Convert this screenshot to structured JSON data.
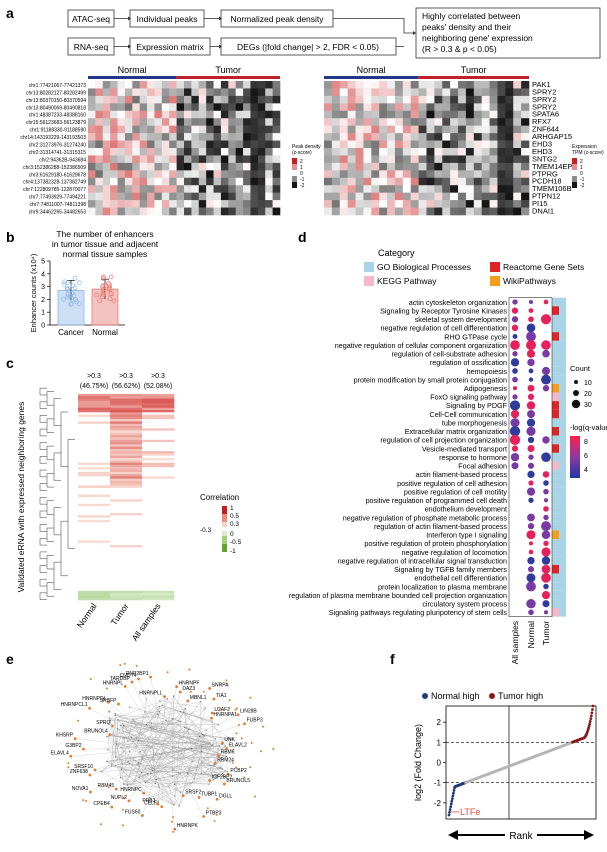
{
  "panel_a": {
    "label": "a",
    "flow": {
      "atac": "ATAC-seq",
      "individual_peaks": "Individual peaks",
      "normalized_density": "Normalized peak density",
      "rnaseq": "RNA-seq",
      "expression_matrix": "Expression matrix",
      "degs": "DEGs (|fold change| > 2, FDR < 0.05)",
      "result_line1": "Highly correlated between",
      "result_line2": "peaks' density and their",
      "result_line3": "neighboring gene' expression",
      "result_line4": "(R > 0.3 & p < 0.05)"
    },
    "heatmap_left": {
      "group_normal": "Normal",
      "group_tumor": "Tumor",
      "legend_title_1": "Peak density",
      "legend_title_2": "(z-score)",
      "legend_ticks": [
        "2",
        "1",
        "0",
        "-1",
        "-2"
      ],
      "rows": [
        "chr1:77421067-77421373",
        "chr13:80282127-80282499",
        "chr13:80370150-80370594",
        "chr13:80490069-80490818",
        "chr1:48387233-48388160",
        "chr15:56123683-56123879",
        "chr1:91188330-91188590",
        "chr14:143193229-143193503",
        "chr2:31273976-31274240",
        "chr2:31314741-31315315",
        "chr2:94362B-943684",
        "chr3:152386288-152386509",
        "chr3:61629180-61629678",
        "chr4:137382328-137382749",
        "chr7:122809785-122870077",
        "chr7:77493929-77494221",
        "chr7:74811007-74811398",
        "chr9:34462265-34482653"
      ]
    },
    "heatmap_right": {
      "group_normal": "Normal",
      "group_tumor": "Tumor",
      "legend_title_1": "Expression",
      "legend_title_2": "TPM (z-score)",
      "legend_ticks": [
        "2",
        "1",
        "0",
        "-1",
        "-2"
      ],
      "genes": [
        "PAK1",
        "SPRY2",
        "SPRY2",
        "SPRY2",
        "SPATA6",
        "RFX7",
        "ZNF644",
        "ARHGAP15",
        "EHD3",
        "EHD3",
        "SNTG2",
        "TMEM14EP",
        "PTPRG",
        "PCDH18",
        "TMEM106B",
        "PTPN12",
        "PI15",
        "DNAI1"
      ]
    }
  },
  "panel_b": {
    "label": "b",
    "title": "The number of enhancers in tumor tissue and adjacent normal tissue samples",
    "title_line1": "The number of enhancers",
    "title_line2": "in tumor tissue and adjacent",
    "title_line3": "normal tissue samples",
    "ylabel": "Enhancer counts (x10⁴)",
    "chart_data": {
      "type": "bar",
      "categories": [
        "Cancer",
        "Normal"
      ],
      "values": [
        2.7,
        2.8
      ],
      "ylim": [
        0,
        5
      ],
      "yticks": [
        "0",
        "1",
        "2",
        "3",
        "4",
        "5"
      ],
      "colors": [
        "#8fb8e8",
        "#e87a72"
      ],
      "ylabel": "Enhancer counts (x10⁴)"
    }
  },
  "panel_c": {
    "label": "c",
    "columns": [
      "Normal",
      "Tumor",
      "All samples"
    ],
    "col_thresholds": [
      ">0.3",
      ">0.3",
      ">0.3"
    ],
    "col_percents": [
      "(46.75%)",
      "(56.62%)",
      "(52.08%)"
    ],
    "ylabel": "Validated eRNA with expressed neighboring genes",
    "legend_title": "Correlation",
    "legend_ticks": [
      "1",
      "0.5",
      "0.3",
      "-0.3",
      "0",
      "-0.5",
      "-1"
    ]
  },
  "panel_d": {
    "label": "d",
    "legend_category_title": "Category",
    "categories": [
      {
        "name": "GO Biological Processes",
        "color": "#a8d4e6"
      },
      {
        "name": "Reactome Gene Sets",
        "color": "#e02424"
      },
      {
        "name": "KEGG Pathway",
        "color": "#f4b8c8"
      },
      {
        "name": "WikiPathways",
        "color": "#f59e1b"
      }
    ],
    "columns": [
      "All samples",
      "Normal",
      "Tumor"
    ],
    "count_title": "Count",
    "count_ticks": [
      "10",
      "20",
      "30"
    ],
    "q_title": "-log(q-value)",
    "q_ticks": [
      "8",
      "6",
      "4"
    ],
    "terms": [
      "actin cytoskeleton organization",
      "Signaling by Receptor Tyrosine Kinases",
      "skeletal system development",
      "negative regulation of cell differentiation",
      "RHO GTPase cycle",
      "negative regulation of cellular component organization",
      "regulation of cell-substrate adhesion",
      "regulation of ossification",
      "hemopoiesis",
      "protein modification by small protein conjugation",
      "Adipogenesis",
      "FoxO signaling pathway",
      "Signaling by PDGF",
      "Cell-Cell communication",
      "tube morphogenesis",
      "Extracellular matrix organization",
      "regulation of cell projection organization",
      "Vesicle-mediated transport",
      "response to hormone",
      "Focal adhesion",
      "actin filament-based process",
      "positive regulation of cell adhesion",
      "positive regulation of cell motility",
      "positive regulation of programmed cell death",
      "endothelium development",
      "negative regulation of phosphate metabolic process",
      "regulation of actin filament-based process",
      "Interferon type I signaling",
      "positive regulation of protein phosphorylation",
      "negative regulation of locomotion",
      "negative regulation of intracellular signal transduction",
      "Signaling by TGFB family members",
      "endothelial cell differentiation",
      "protein localization to plasma membrane",
      "regulation of plasma membrane bounded cell projection organization",
      "circulatory system process",
      "Signaling pathways regulating pluripotency of stem cells"
    ]
  },
  "panel_e": {
    "label": "e",
    "nodes": [
      "HNRNPLL",
      "HNRNPF",
      "DAZ3",
      "MBNL1",
      "SNRPA",
      "TIA1",
      "U2AF2",
      "HNRNPA1",
      "LIN28B",
      "FUBP3",
      "UNK",
      "ELAVL2",
      "RBM6",
      "RBM24",
      "PCBP2",
      "BRUNOL5",
      "IGF2BP2",
      "DGLL",
      "TUBP1",
      "PTBP3",
      "SRSF2",
      "HNRNPK",
      "CELF1",
      "PRB3",
      "FUS60",
      "HNRNPC",
      "NUPL2",
      "CPEB4",
      "RBM45",
      "NOVA1",
      "ZNF638",
      "SRSF10",
      "ELAVL4",
      "G3BP2",
      "KHSRP",
      "BRUNOL4",
      "SPRQ",
      "HNRNPCL1",
      "HNRNPDL",
      "SRBFP",
      "HNRNPL",
      "TARDBP",
      "CNOT4",
      "RNP2BP1"
    ]
  },
  "panel_f": {
    "label": "f",
    "legend_normal": "Normal high",
    "legend_tumor": "Tumor high",
    "ylabel": "log2 (Fold Change)",
    "xlabel": "Rank",
    "yticks": [
      "2",
      "1",
      "0",
      "-1",
      "-2"
    ],
    "annotation": "LTFe",
    "colors": {
      "normal": "#1f3a7a",
      "tumor": "#8a1a1a",
      "middle": "#b5b5b5"
    }
  }
}
